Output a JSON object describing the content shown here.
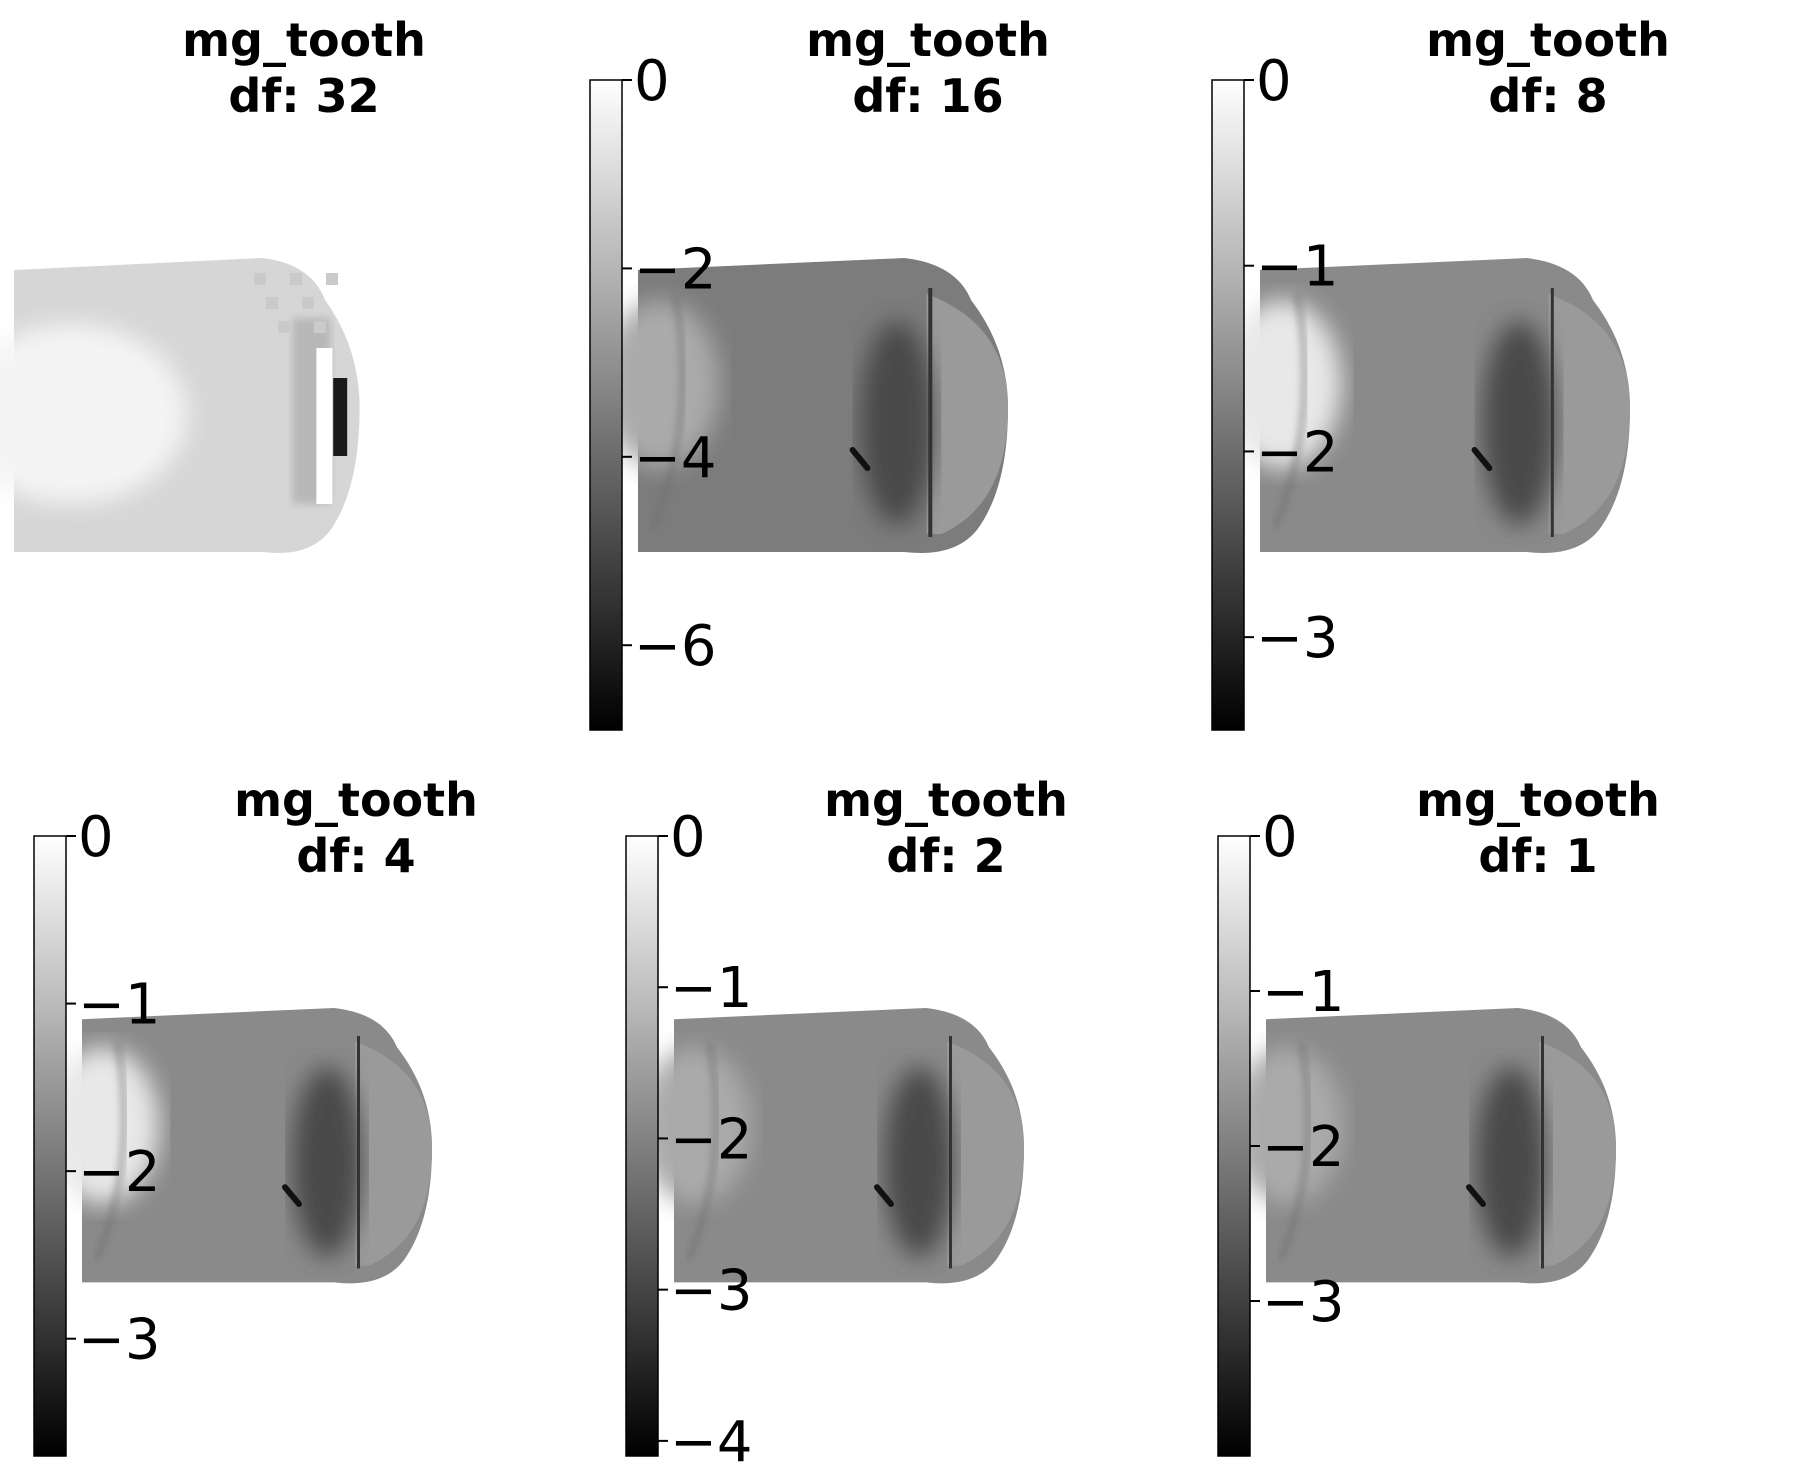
{
  "figure": {
    "colormap": "gray",
    "background": "#ffffff"
  },
  "chart_data": [
    {
      "type": "heatmap",
      "title": [
        "mg_tooth",
        "df: 32"
      ],
      "sample": "mg_tooth",
      "downsample_factor": 32,
      "colorbar": {
        "visible": false,
        "ticks": []
      },
      "pixelated": true
    },
    {
      "type": "heatmap",
      "title": [
        "mg_tooth",
        "df: 16"
      ],
      "sample": "mg_tooth",
      "downsample_factor": 16,
      "colorbar": {
        "visible": true,
        "range": [
          -6.9,
          0
        ],
        "ticks": [
          0,
          -2,
          -4,
          -6
        ],
        "tick_labels": [
          "0",
          "−2",
          "−4",
          "−6"
        ]
      },
      "pixelated": true
    },
    {
      "type": "heatmap",
      "title": [
        "mg_tooth",
        "df: 8"
      ],
      "sample": "mg_tooth",
      "downsample_factor": 8,
      "colorbar": {
        "visible": true,
        "range": [
          -3.5,
          0
        ],
        "ticks": [
          0,
          -1,
          -2,
          -3
        ],
        "tick_labels": [
          "0",
          "−1",
          "−2",
          "−3"
        ]
      },
      "pixelated": false
    },
    {
      "type": "heatmap",
      "title": [
        "mg_tooth",
        "df: 4"
      ],
      "sample": "mg_tooth",
      "downsample_factor": 4,
      "colorbar": {
        "visible": true,
        "range": [
          -3.7,
          0
        ],
        "ticks": [
          0,
          -1,
          -2,
          -3
        ],
        "tick_labels": [
          "0",
          "−1",
          "−2",
          "−3"
        ]
      },
      "pixelated": false
    },
    {
      "type": "heatmap",
      "title": [
        "mg_tooth",
        "df: 2"
      ],
      "sample": "mg_tooth",
      "downsample_factor": 2,
      "colorbar": {
        "visible": true,
        "range": [
          -4.1,
          0
        ],
        "ticks": [
          0,
          -1,
          -2,
          -3,
          -4
        ],
        "tick_labels": [
          "0",
          "−1",
          "−2",
          "−3",
          "−4"
        ]
      },
      "pixelated": false
    },
    {
      "type": "heatmap",
      "title": [
        "mg_tooth",
        "df: 1"
      ],
      "sample": "mg_tooth",
      "downsample_factor": 1,
      "colorbar": {
        "visible": true,
        "range": [
          -4.0,
          0
        ],
        "ticks": [
          0,
          -1,
          -2,
          -3
        ],
        "tick_labels": [
          "0",
          "−1",
          "−2",
          "−3"
        ]
      },
      "pixelated": false
    }
  ]
}
